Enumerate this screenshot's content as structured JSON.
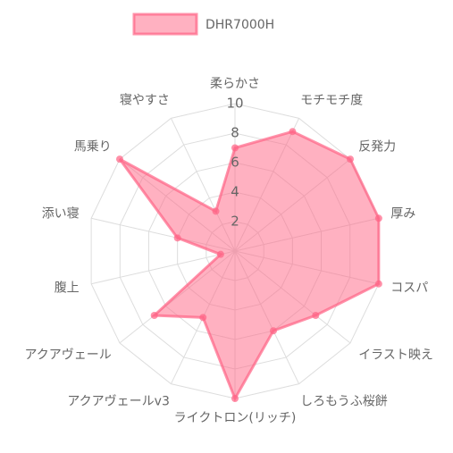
{
  "chart_data": {
    "type": "radar",
    "categories": [
      "柔らかさ",
      "モチモチ度",
      "反発力",
      "厚み",
      "コスパ",
      "イラスト映え",
      "しろもうふ桜餅",
      "ライクトロン(リッチ)",
      "アクアヴェールv3",
      "アクアヴェール",
      "腹上",
      "添い寝",
      "馬乗り",
      "寝やすさ"
    ],
    "series": [
      {
        "name": "DHR7000H",
        "color": "#ff6384",
        "values": [
          7,
          9,
          10,
          10,
          10,
          7,
          6,
          10,
          5,
          7,
          1,
          4,
          10,
          3
        ]
      }
    ],
    "ylim": [
      0,
      10
    ],
    "yticks": [
      2,
      4,
      6,
      8,
      10
    ],
    "grid": true,
    "legend": "top"
  }
}
